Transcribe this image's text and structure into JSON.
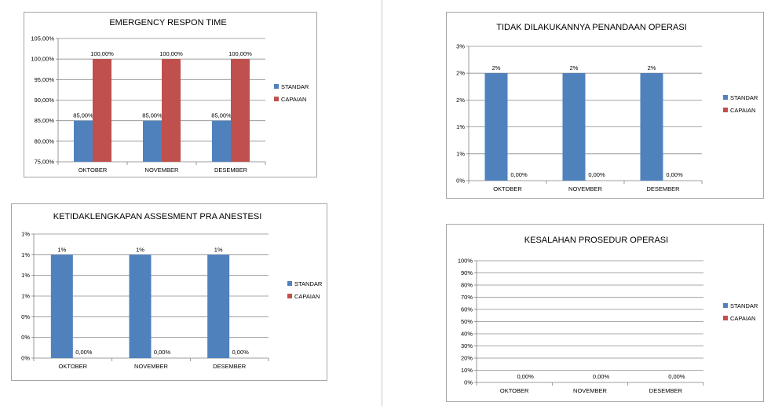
{
  "colors": {
    "standar": "#4f81bd",
    "capaian": "#c0504d",
    "grid": "#8c8c8c",
    "axis": "#7f7f7f"
  },
  "chart_data": [
    {
      "type": "bar",
      "title": "EMERGENCY RESPON TIME",
      "categories": [
        "OKTOBER",
        "NOVEMBER",
        "DESEMBER"
      ],
      "series": [
        {
          "name": "STANDAR",
          "values": [
            85,
            85,
            85
          ],
          "labels": [
            "85,00%",
            "85,00%",
            "85,00%"
          ]
        },
        {
          "name": "CAPAIAN",
          "values": [
            100,
            100,
            100
          ],
          "labels": [
            "100,00%",
            "100,00%",
            "100,00%"
          ]
        }
      ],
      "ylim": [
        75,
        105
      ],
      "yticks": [
        75,
        80,
        85,
        90,
        95,
        100,
        105
      ],
      "ytick_labels": [
        "75,00%",
        "80,00%",
        "85,00%",
        "90,00%",
        "95,00%",
        "100,00%",
        "105,00%"
      ],
      "grid": true,
      "legend": "right"
    },
    {
      "type": "bar",
      "title": "TIDAK DILAKUKANNYA PENANDAAN OPERASI",
      "categories": [
        "OKTOBER",
        "NOVEMBER",
        "DESEMBER"
      ],
      "series": [
        {
          "name": "STANDAR",
          "values": [
            2,
            2,
            2
          ],
          "labels": [
            "2%",
            "2%",
            "2%"
          ]
        },
        {
          "name": "CAPAIAN",
          "values": [
            0,
            0,
            0
          ],
          "labels": [
            "0,00%",
            "0,00%",
            "0,00%"
          ]
        }
      ],
      "ylim": [
        0,
        2.5
      ],
      "yticks": [
        0,
        0.5,
        1,
        1.5,
        2,
        2.5
      ],
      "ytick_labels": [
        "0%",
        "1%",
        "1%",
        "2%",
        "2%",
        "3%"
      ],
      "grid": true,
      "legend": "right"
    },
    {
      "type": "bar",
      "title": "KETIDAKLENGKAPAN ASSESMENT PRA ANESTESI",
      "categories": [
        "OKTOBER",
        "NOVEMBER",
        "DESEMBER"
      ],
      "series": [
        {
          "name": "STANDAR",
          "values": [
            1,
            1,
            1
          ],
          "labels": [
            "1%",
            "1%",
            "1%"
          ]
        },
        {
          "name": "CAPAIAN",
          "values": [
            0,
            0,
            0
          ],
          "labels": [
            "0,00%",
            "0,00%",
            "0,00%"
          ]
        }
      ],
      "ylim": [
        0,
        1.2
      ],
      "yticks": [
        0,
        0.2,
        0.4,
        0.6,
        0.8,
        1,
        1.2
      ],
      "ytick_labels": [
        "0%",
        "0%",
        "0%",
        "1%",
        "1%",
        "1%",
        "1%"
      ],
      "grid": true,
      "legend": "right"
    },
    {
      "type": "bar",
      "title": "KESALAHAN PROSEDUR OPERASI",
      "categories": [
        "OKTOBER",
        "NOVEMBER",
        "DESEMBER"
      ],
      "series": [
        {
          "name": "STANDAR",
          "values": [
            0,
            0,
            0
          ],
          "labels": [
            "",
            "",
            ""
          ]
        },
        {
          "name": "CAPAIAN",
          "values": [
            0,
            0,
            0
          ],
          "labels": [
            "0,00%",
            "0,00%",
            "0,00%"
          ]
        }
      ],
      "ylim": [
        0,
        100
      ],
      "yticks": [
        0,
        10,
        20,
        30,
        40,
        50,
        60,
        70,
        80,
        90,
        100
      ],
      "ytick_labels": [
        "0%",
        "10%",
        "20%",
        "30%",
        "40%",
        "50%",
        "60%",
        "70%",
        "80%",
        "90%",
        "100%"
      ],
      "grid": true,
      "legend": "right"
    }
  ]
}
